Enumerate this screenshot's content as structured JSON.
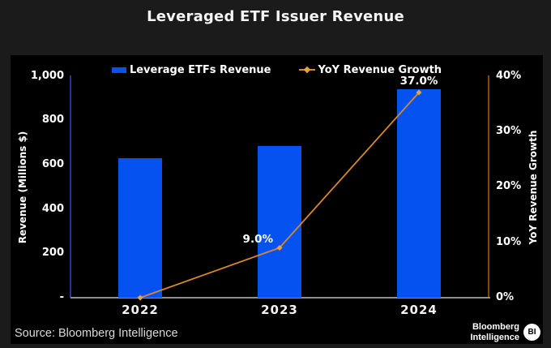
{
  "page": {
    "title": "Leveraged ETF Issuer Revenue",
    "background": "#1b1b1b",
    "panel_background": "#000000"
  },
  "chart_data": {
    "type": "bar",
    "categories": [
      "2022",
      "2023",
      "2024"
    ],
    "series": [
      {
        "name": "Leverage ETFs Revenue",
        "type": "bar",
        "axis": "left",
        "values": [
          630,
          685,
          940
        ],
        "color": "#0552f0"
      },
      {
        "name": "YoY Revenue Growth",
        "type": "line",
        "axis": "right",
        "values": [
          0,
          9,
          37
        ],
        "labels": [
          "",
          "9.0%",
          "37.0%"
        ],
        "color": "#d8882a",
        "marker_color": "#e9a13b"
      }
    ],
    "left_axis": {
      "title": "Revenue (Millions $)",
      "range": [
        0,
        1000
      ],
      "line_color": "#1d3c8c",
      "ticks": [
        {
          "label": "1,000",
          "value": 1000
        },
        {
          "label": "800",
          "value": 800
        },
        {
          "label": "600",
          "value": 600
        },
        {
          "label": "400",
          "value": 400
        },
        {
          "label": "200",
          "value": 200
        },
        {
          "label": "-",
          "value": 0
        }
      ]
    },
    "right_axis": {
      "title": "YoY Revenue Growth",
      "range": [
        0,
        40
      ],
      "line_color": "#7c4a12",
      "ticks": [
        {
          "label": "40%",
          "value": 40
        },
        {
          "label": "30%",
          "value": 30
        },
        {
          "label": "20%",
          "value": 20
        },
        {
          "label": "10%",
          "value": 10
        },
        {
          "label": "0%",
          "value": 0
        }
      ]
    },
    "x_axis": {
      "line_color": "#8f8f8f"
    },
    "legend_position": "top",
    "grid": false
  },
  "footer": {
    "source": "Source: Bloomberg Intelligence",
    "brand_line1": "Bloomberg",
    "brand_line2": "Intelligence",
    "brand_badge": "BI"
  }
}
